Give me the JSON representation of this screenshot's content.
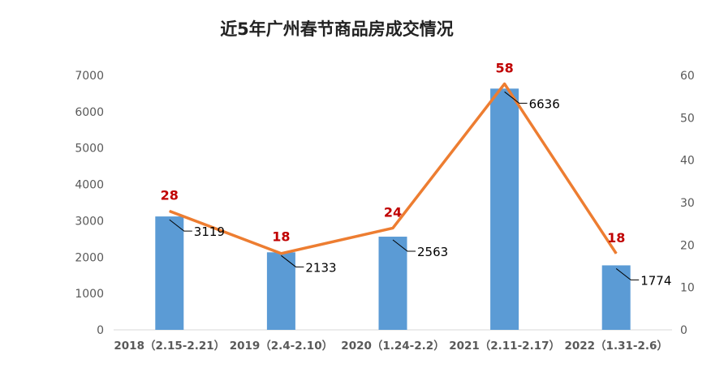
{
  "chart_data": {
    "type": "bar",
    "title": "近5年广州春节商品房成交情况",
    "categories": [
      "2018（2.15-2.21）",
      "2019（2.4-2.10）",
      "2020（1.24-2.2）",
      "2021（2.11-2.17）",
      "2022（1.31-2.6）"
    ],
    "series": [
      {
        "type": "bar",
        "axis": "left",
        "values": [
          3119,
          2133,
          2563,
          6636,
          1774
        ],
        "color": "#5B9BD5"
      },
      {
        "type": "line",
        "axis": "right",
        "values": [
          28,
          18,
          24,
          58,
          18
        ],
        "color": "#ED7D31"
      }
    ],
    "ylim_left": [
      0,
      7000
    ],
    "yticks_left": [
      "0",
      "1000",
      "2000",
      "3000",
      "4000",
      "5000",
      "6000",
      "7000"
    ],
    "ylim_right": [
      0,
      60
    ],
    "yticks_right": [
      "0",
      "10",
      "20",
      "30",
      "40",
      "50",
      "60"
    ],
    "grid": false,
    "legend": "none",
    "colors": {
      "bar": "#5B9BD5",
      "line": "#ED7D31",
      "line_label": "#C00000",
      "axis_text": "#595959"
    }
  }
}
